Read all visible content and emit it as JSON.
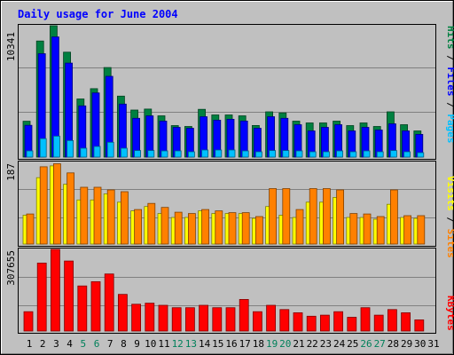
{
  "title": "Daily usage for June 2004",
  "colors": {
    "background": "#c0c0c0",
    "plot_bg": "#c0c0c0",
    "title": "#0000ff",
    "hits": "#008040",
    "files": "#0000ff",
    "pages": "#00c0ff",
    "visits": "#ffff00",
    "sites": "#ff8000",
    "kbytes": "#ff0000"
  },
  "chart_data": [
    {
      "type": "bar",
      "title": "Daily usage for June 2004",
      "categories": [
        "1",
        "2",
        "3",
        "4",
        "5",
        "6",
        "7",
        "8",
        "9",
        "10",
        "11",
        "12",
        "13",
        "14",
        "15",
        "16",
        "17",
        "18",
        "19",
        "20",
        "21",
        "22",
        "23",
        "24",
        "25",
        "26",
        "27",
        "28",
        "29",
        "30",
        "31"
      ],
      "weekend_days": [
        "5",
        "6",
        "12",
        "13",
        "19",
        "20",
        "26",
        "27"
      ],
      "ymax_label": "10341",
      "ylim": [
        0,
        10341
      ],
      "right_labels": [
        "Pages",
        "Files",
        "Hits"
      ],
      "series": [
        {
          "name": "Hits",
          "values": [
            2820,
            9140,
            10341,
            8260,
            4580,
            5390,
            7050,
            4800,
            3700,
            3780,
            3250,
            2480,
            2410,
            3760,
            3320,
            3320,
            3250,
            2490,
            3560,
            3480,
            2830,
            2690,
            2690,
            2830,
            2480,
            2690,
            2410,
            3560,
            2550,
            2060,
            0
          ]
        },
        {
          "name": "Files",
          "values": [
            2500,
            8140,
            9460,
            7400,
            4030,
            5050,
            6360,
            4170,
            3050,
            3250,
            2830,
            2340,
            2270,
            3180,
            2910,
            2980,
            2840,
            2270,
            3180,
            3050,
            2550,
            2060,
            2340,
            2550,
            2060,
            2340,
            2130,
            2620,
            2060,
            1790,
            0
          ]
        },
        {
          "name": "Pages",
          "values": [
            490,
            1450,
            1650,
            1300,
            700,
            840,
            1170,
            700,
            520,
            520,
            490,
            490,
            420,
            560,
            560,
            560,
            490,
            420,
            520,
            520,
            490,
            420,
            420,
            490,
            420,
            490,
            420,
            520,
            420,
            350,
            0
          ]
        }
      ]
    },
    {
      "type": "bar",
      "categories": [
        "1",
        "2",
        "3",
        "4",
        "5",
        "6",
        "7",
        "8",
        "9",
        "10",
        "11",
        "12",
        "13",
        "14",
        "15",
        "16",
        "17",
        "18",
        "19",
        "20",
        "21",
        "22",
        "23",
        "24",
        "25",
        "26",
        "27",
        "28",
        "29",
        "30",
        "31"
      ],
      "ymax_label": "187",
      "ylim": [
        0,
        187
      ],
      "right_labels": [
        "Sites",
        "Visits"
      ],
      "series": [
        {
          "name": "Visits",
          "values": [
            66,
            152,
            179,
            137,
            101,
            101,
            115,
            96,
            76,
            86,
            70,
            61,
            61,
            76,
            70,
            70,
            70,
            59,
            86,
            66,
            61,
            96,
            96,
            107,
            61,
            61,
            57,
            91,
            61,
            59,
            0
          ]
        },
        {
          "name": "Sites",
          "values": [
            69,
            177,
            184,
            163,
            130,
            130,
            124,
            120,
            79,
            93,
            84,
            73,
            70,
            79,
            76,
            72,
            72,
            63,
            127,
            127,
            79,
            127,
            127,
            124,
            70,
            69,
            63,
            124,
            65,
            65,
            0
          ]
        }
      ]
    },
    {
      "type": "bar",
      "categories": [
        "1",
        "2",
        "3",
        "4",
        "5",
        "6",
        "7",
        "8",
        "9",
        "10",
        "11",
        "12",
        "13",
        "14",
        "15",
        "16",
        "17",
        "18",
        "19",
        "20",
        "21",
        "22",
        "23",
        "24",
        "25",
        "26",
        "27",
        "28",
        "29",
        "30",
        "31"
      ],
      "ymax_label": "307655",
      "ylim": [
        0,
        307655
      ],
      "right_labels": [
        "KBytes"
      ],
      "series": [
        {
          "name": "KBytes",
          "values": [
            73000,
            256000,
            307655,
            264000,
            170000,
            186000,
            215000,
            138000,
            101000,
            105000,
            97000,
            88000,
            88000,
            97000,
            88000,
            88000,
            119000,
            73000,
            97000,
            81000,
            69000,
            56000,
            60000,
            73000,
            52000,
            88000,
            60000,
            81000,
            69000,
            42000,
            0
          ]
        }
      ]
    }
  ]
}
